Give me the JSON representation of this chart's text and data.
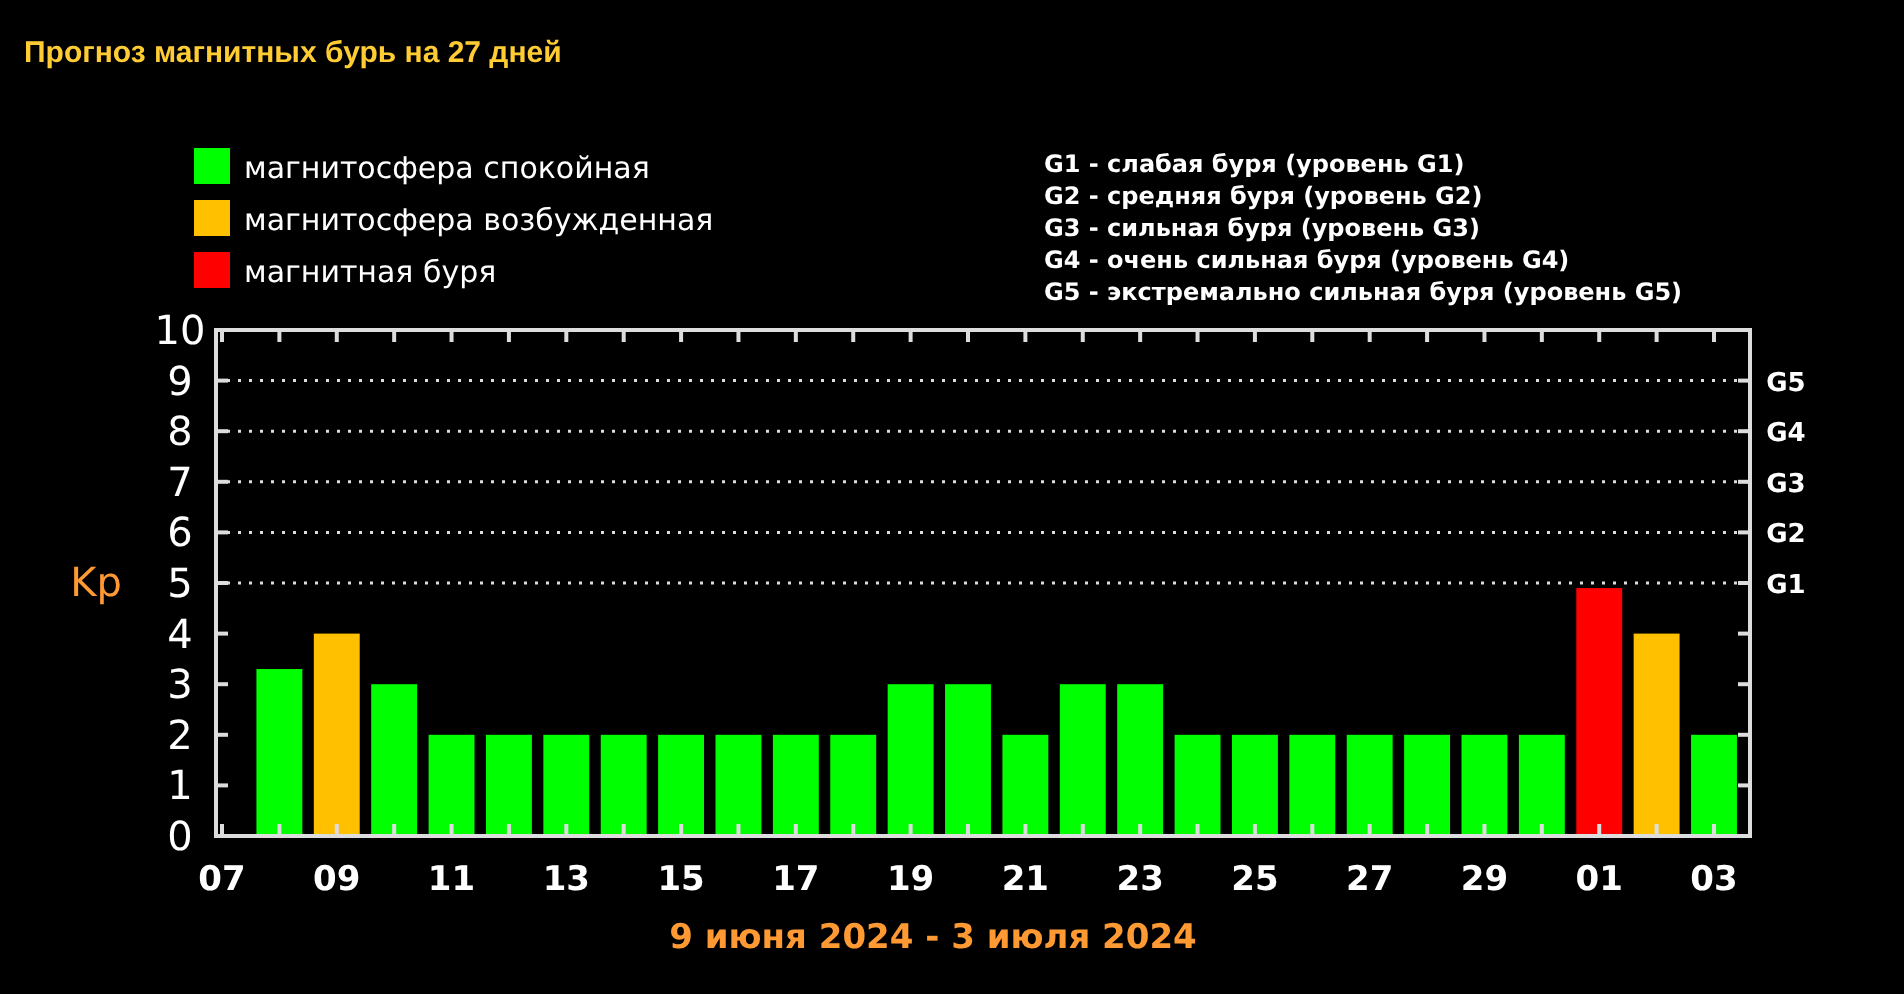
{
  "chart_data": {
    "type": "bar",
    "title": "Прогноз магнитных бурь на 27 дней",
    "xlabel": "9 июня 2024 - 3 июля 2024",
    "ylabel": "Kp",
    "categories": [
      "07",
      null,
      "09",
      null,
      "11",
      null,
      "13",
      null,
      "15",
      null,
      "17",
      null,
      "19",
      null,
      "21",
      null,
      "23",
      null,
      "25",
      null,
      "27",
      null,
      "29",
      null,
      "01",
      null,
      "03"
    ],
    "series": [
      {
        "name": "магнитосфера спокойная",
        "color": "#00ff00",
        "values": [
          null,
          3.3,
          null,
          3,
          2,
          2,
          2,
          2,
          2,
          2,
          2,
          2,
          3,
          3,
          2,
          3,
          3,
          2,
          2,
          2,
          2,
          2,
          2,
          2,
          null,
          null,
          2
        ]
      },
      {
        "name": "магнитосфера возбужденная",
        "color": "#ffc000",
        "values": [
          null,
          null,
          4,
          null,
          null,
          null,
          null,
          null,
          null,
          null,
          null,
          null,
          null,
          null,
          null,
          null,
          null,
          null,
          null,
          null,
          null,
          null,
          null,
          null,
          null,
          4,
          null
        ]
      },
      {
        "name": "магнитная буря",
        "color": "#ff0000",
        "values": [
          null,
          null,
          null,
          null,
          null,
          null,
          null,
          null,
          null,
          null,
          null,
          null,
          null,
          null,
          null,
          null,
          null,
          null,
          null,
          null,
          null,
          null,
          null,
          null,
          4.9,
          null,
          null
        ]
      }
    ],
    "ylim": [
      0,
      10
    ],
    "yticks": [
      0,
      1,
      2,
      3,
      4,
      5,
      6,
      7,
      8,
      9,
      10
    ],
    "ref_lines": [
      {
        "axis": "y",
        "value": 5,
        "label": "G1",
        "line_style": "dotted"
      },
      {
        "axis": "y",
        "value": 6,
        "label": "G2",
        "line_style": "dotted"
      },
      {
        "axis": "y",
        "value": 7,
        "label": "G3",
        "line_style": "dotted"
      },
      {
        "axis": "y",
        "value": 8,
        "label": "G4",
        "line_style": "dotted"
      },
      {
        "axis": "y",
        "value": 9,
        "label": "G5",
        "line_style": "dotted"
      }
    ],
    "legend": "top left",
    "annotations": [
      "G1 - слабая буря (уровень G1)",
      "G2 - средняя буря (уровень G2)",
      "G3 - сильная буря (уровень G3)",
      "G4 - очень сильная буря (уровень G4)",
      "G5 - экстремально сильная буря (уровень G5)"
    ]
  }
}
